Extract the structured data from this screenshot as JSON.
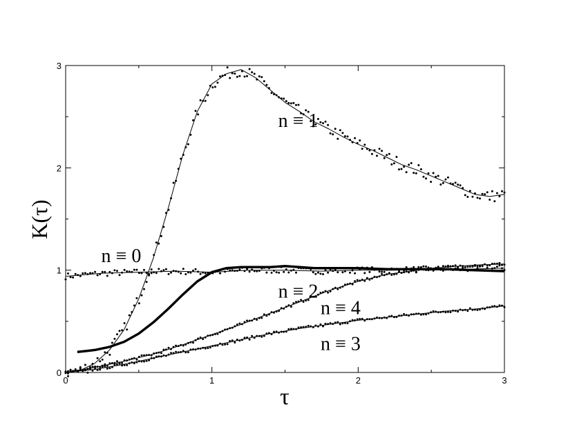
{
  "chart_data": {
    "type": "scatter",
    "title": "",
    "xlabel": "τ",
    "ylabel": "K(τ)",
    "xlim": [
      0,
      3
    ],
    "ylim": [
      0,
      3
    ],
    "x_ticks": [
      "0",
      "1",
      "2",
      "3"
    ],
    "y_ticks": [
      "0",
      "1",
      "2",
      "3"
    ],
    "grid": false,
    "legend": "none",
    "series": [
      {
        "name": "n ≡ 0",
        "style": "dots-with-thin-line",
        "x": [
          0.0,
          0.25,
          0.5,
          0.75,
          1.0,
          1.25,
          1.5,
          1.75,
          2.0,
          2.25,
          2.5,
          2.75,
          3.0
        ],
        "y": [
          0.94,
          0.97,
          0.98,
          0.99,
          0.98,
          1.0,
          1.0,
          0.99,
          1.0,
          1.0,
          1.01,
          1.01,
          1.02
        ]
      },
      {
        "name": "n ≡ 1",
        "style": "dots-with-thin-line",
        "x": [
          0.0,
          0.1,
          0.2,
          0.3,
          0.4,
          0.5,
          0.6,
          0.7,
          0.8,
          0.9,
          1.0,
          1.1,
          1.2,
          1.3,
          1.4,
          1.5,
          1.6,
          1.7,
          1.8,
          1.9,
          2.0,
          2.1,
          2.2,
          2.3,
          2.4,
          2.5,
          2.6,
          2.7,
          2.8,
          2.9,
          3.0
        ],
        "y": [
          0.0,
          0.02,
          0.09,
          0.22,
          0.42,
          0.72,
          1.12,
          1.6,
          2.12,
          2.55,
          2.82,
          2.92,
          2.96,
          2.88,
          2.76,
          2.64,
          2.55,
          2.45,
          2.38,
          2.3,
          2.23,
          2.17,
          2.1,
          2.03,
          1.98,
          1.92,
          1.86,
          1.8,
          1.74,
          1.72,
          1.74
        ]
      },
      {
        "name": "n ≡ 2",
        "style": "thick-line",
        "x": [
          0.08,
          0.2,
          0.3,
          0.4,
          0.5,
          0.6,
          0.7,
          0.8,
          0.9,
          1.0,
          1.1,
          1.2,
          1.3,
          1.4,
          1.5,
          1.6,
          1.7,
          1.8,
          1.9,
          2.0,
          2.2,
          2.4,
          2.6,
          2.8,
          3.0
        ],
        "y": [
          0.2,
          0.22,
          0.25,
          0.3,
          0.38,
          0.49,
          0.62,
          0.76,
          0.89,
          0.98,
          1.02,
          1.03,
          1.03,
          1.03,
          1.04,
          1.03,
          1.02,
          1.02,
          1.02,
          1.02,
          1.01,
          1.01,
          1.01,
          1.0,
          0.99
        ]
      },
      {
        "name": "n ≡ 3",
        "style": "dots-with-thin-line",
        "x": [
          0.0,
          0.2,
          0.4,
          0.6,
          0.8,
          1.0,
          1.2,
          1.4,
          1.6,
          1.8,
          2.0,
          2.2,
          2.4,
          2.6,
          2.8,
          3.0
        ],
        "y": [
          0.0,
          0.03,
          0.08,
          0.14,
          0.2,
          0.26,
          0.32,
          0.38,
          0.43,
          0.47,
          0.51,
          0.54,
          0.57,
          0.6,
          0.62,
          0.65
        ]
      },
      {
        "name": "n ≡ 4",
        "style": "dots-with-thin-line",
        "x": [
          0.0,
          0.2,
          0.4,
          0.6,
          0.8,
          1.0,
          1.2,
          1.4,
          1.6,
          1.8,
          2.0,
          2.2,
          2.4,
          2.6,
          2.8,
          3.0
        ],
        "y": [
          0.0,
          0.05,
          0.11,
          0.18,
          0.27,
          0.37,
          0.47,
          0.58,
          0.69,
          0.8,
          0.89,
          0.96,
          1.0,
          1.03,
          1.05,
          1.06
        ]
      }
    ],
    "annotations": [
      {
        "text": "n ≡ 1",
        "series": "n ≡ 1",
        "x": 1.59,
        "y": 2.4
      },
      {
        "text": "n ≡ 0",
        "series": "n ≡ 0",
        "x": 0.38,
        "y": 1.08
      },
      {
        "text": "n ≡ 2",
        "series": "n ≡ 2",
        "x": 1.59,
        "y": 0.73
      },
      {
        "text": "n ≡ 4",
        "series": "n ≡ 4",
        "x": 1.88,
        "y": 0.57
      },
      {
        "text": "n ≡ 3",
        "series": "n ≡ 3",
        "x": 1.88,
        "y": 0.22
      }
    ]
  }
}
